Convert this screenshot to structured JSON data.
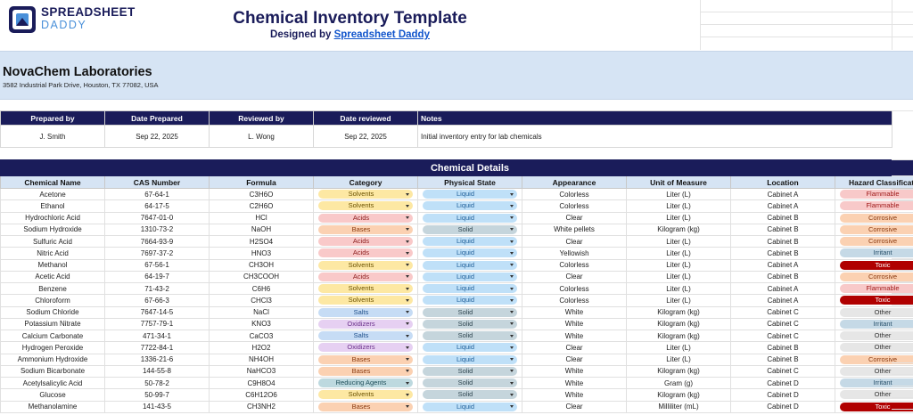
{
  "header": {
    "logo_line1": "SPREADSHEET",
    "logo_line2": "DADDY",
    "title": "Chemical Inventory Template",
    "designed_by_prefix": "Designed by ",
    "designed_by_link": "Spreadsheet Daddy"
  },
  "lab": {
    "name": "NovaChem Laboratories",
    "address": "3582 Industrial Park Drive, Houston, TX 77082, USA"
  },
  "info": {
    "headers": [
      "Prepared by",
      "Date Prepared",
      "Reviewed by",
      "Date reviewed",
      "Notes"
    ],
    "values": [
      "J. Smith",
      "Sep 22, 2025",
      "L. Wong",
      "Sep 22, 2025",
      "Initial inventory entry for lab chemicals"
    ]
  },
  "chemicals": {
    "section_title": "Chemical Details",
    "columns": [
      "Chemical Name",
      "CAS Number",
      "Formula",
      "Category",
      "Physical State",
      "Appearance",
      "Unit of Measure",
      "Location",
      "Hazard Classification"
    ],
    "rows": [
      {
        "name": "Acetone",
        "cas": "67-64-1",
        "formula": "C3H6O",
        "category": "Solvents",
        "state": "Liquid",
        "appearance": "Colorless",
        "unit": "Liter (L)",
        "location": "Cabinet A",
        "hazard": "Flammable"
      },
      {
        "name": "Ethanol",
        "cas": "64-17-5",
        "formula": "C2H6O",
        "category": "Solvents",
        "state": "Liquid",
        "appearance": "Colorless",
        "unit": "Liter (L)",
        "location": "Cabinet A",
        "hazard": "Flammable"
      },
      {
        "name": "Hydrochloric Acid",
        "cas": "7647-01-0",
        "formula": "HCl",
        "category": "Acids",
        "state": "Liquid",
        "appearance": "Clear",
        "unit": "Liter (L)",
        "location": "Cabinet B",
        "hazard": "Corrosive"
      },
      {
        "name": "Sodium Hydroxide",
        "cas": "1310-73-2",
        "formula": "NaOH",
        "category": "Bases",
        "state": "Solid",
        "appearance": "White pellets",
        "unit": "Kilogram (kg)",
        "location": "Cabinet B",
        "hazard": "Corrosive"
      },
      {
        "name": "Sulfuric Acid",
        "cas": "7664-93-9",
        "formula": "H2SO4",
        "category": "Acids",
        "state": "Liquid",
        "appearance": "Clear",
        "unit": "Liter (L)",
        "location": "Cabinet B",
        "hazard": "Corrosive"
      },
      {
        "name": "Nitric Acid",
        "cas": "7697-37-2",
        "formula": "HNO3",
        "category": "Acids",
        "state": "Liquid",
        "appearance": "Yellowish",
        "unit": "Liter (L)",
        "location": "Cabinet B",
        "hazard": "Irritant"
      },
      {
        "name": "Methanol",
        "cas": "67-56-1",
        "formula": "CH3OH",
        "category": "Solvents",
        "state": "Liquid",
        "appearance": "Colorless",
        "unit": "Liter (L)",
        "location": "Cabinet A",
        "hazard": "Toxic"
      },
      {
        "name": "Acetic Acid",
        "cas": "64-19-7",
        "formula": "CH3COOH",
        "category": "Acids",
        "state": "Liquid",
        "appearance": "Clear",
        "unit": "Liter (L)",
        "location": "Cabinet B",
        "hazard": "Corrosive"
      },
      {
        "name": "Benzene",
        "cas": "71-43-2",
        "formula": "C6H6",
        "category": "Solvents",
        "state": "Liquid",
        "appearance": "Colorless",
        "unit": "Liter (L)",
        "location": "Cabinet A",
        "hazard": "Flammable"
      },
      {
        "name": "Chloroform",
        "cas": "67-66-3",
        "formula": "CHCl3",
        "category": "Solvents",
        "state": "Liquid",
        "appearance": "Colorless",
        "unit": "Liter (L)",
        "location": "Cabinet A",
        "hazard": "Toxic"
      },
      {
        "name": "Sodium Chloride",
        "cas": "7647-14-5",
        "formula": "NaCl",
        "category": "Salts",
        "state": "Solid",
        "appearance": "White",
        "unit": "Kilogram (kg)",
        "location": "Cabinet C",
        "hazard": "Other"
      },
      {
        "name": "Potassium Nitrate",
        "cas": "7757-79-1",
        "formula": "KNO3",
        "category": "Oxidizers",
        "state": "Solid",
        "appearance": "White",
        "unit": "Kilogram (kg)",
        "location": "Cabinet C",
        "hazard": "Irritant"
      },
      {
        "name": "Calcium Carbonate",
        "cas": "471-34-1",
        "formula": "CaCO3",
        "category": "Salts",
        "state": "Solid",
        "appearance": "White",
        "unit": "Kilogram (kg)",
        "location": "Cabinet C",
        "hazard": "Other"
      },
      {
        "name": "Hydrogen Peroxide",
        "cas": "7722-84-1",
        "formula": "H2O2",
        "category": "Oxidizers",
        "state": "Liquid",
        "appearance": "Clear",
        "unit": "Liter (L)",
        "location": "Cabinet B",
        "hazard": "Other"
      },
      {
        "name": "Ammonium Hydroxide",
        "cas": "1336-21-6",
        "formula": "NH4OH",
        "category": "Bases",
        "state": "Liquid",
        "appearance": "Clear",
        "unit": "Liter (L)",
        "location": "Cabinet B",
        "hazard": "Corrosive"
      },
      {
        "name": "Sodium Bicarbonate",
        "cas": "144-55-8",
        "formula": "NaHCO3",
        "category": "Bases",
        "state": "Solid",
        "appearance": "White",
        "unit": "Kilogram (kg)",
        "location": "Cabinet C",
        "hazard": "Other"
      },
      {
        "name": "Acetylsalicylic Acid",
        "cas": "50-78-2",
        "formula": "C9H8O4",
        "category": "Reducing Agents",
        "state": "Solid",
        "appearance": "White",
        "unit": "Gram (g)",
        "location": "Cabinet D",
        "hazard": "Irritant"
      },
      {
        "name": "Glucose",
        "cas": "50-99-7",
        "formula": "C6H12O6",
        "category": "Solvents",
        "state": "Solid",
        "appearance": "White",
        "unit": "Kilogram (kg)",
        "location": "Cabinet D",
        "hazard": "Other"
      },
      {
        "name": "Methanolamine",
        "cas": "141-43-5",
        "formula": "CH3NH2",
        "category": "Bases",
        "state": "Liquid",
        "appearance": "Clear",
        "unit": "Milliliter (mL)",
        "location": "Cabinet D",
        "hazard": "Toxic"
      }
    ]
  },
  "pill_colors": {
    "category": {
      "Solvents": "#fde8a3",
      "Acids": "#f9c9c9",
      "Bases": "#fbd1b2",
      "Salts": "#c6dcf5",
      "Oxidizers": "#e6d0f2",
      "Reducing Agents": "#bdd9df"
    },
    "state": {
      "Liquid": "#bfe0f8",
      "Solid": "#c5d5dc"
    },
    "hazard": {
      "Flammable": "#f8c9c9",
      "Corrosive": "#fbd1b2",
      "Irritant": "#c5d9e6",
      "Toxic": "#b00000",
      "Other": "#e6e6e6"
    },
    "category_text": {
      "Solvents": "#6b5200",
      "Acids": "#8b1c1c",
      "Bases": "#8a3a10",
      "Salts": "#1e4f8a",
      "Oxidizers": "#6a2f8a",
      "Reducing Agents": "#1f4f5a"
    },
    "state_text": {
      "Liquid": "#1f5f99",
      "Solid": "#2f4650"
    },
    "hazard_text": {
      "Flammable": "#a01b1b",
      "Corrosive": "#8a3a10",
      "Irritant": "#264f6a",
      "Toxic": "#ffffff",
      "Other": "#333333"
    }
  },
  "colors": {
    "navy": "#1a1c5a",
    "light_blue": "#d6e4f4",
    "link": "#1155cc"
  }
}
